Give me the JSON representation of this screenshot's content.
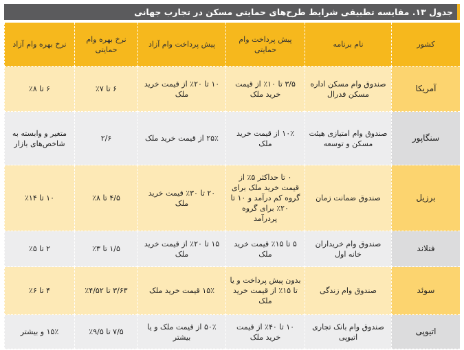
{
  "title": "جدول ۱۳. مقایسه تطبیقی شرایط طرح‌های حمایتی مسکن در تجارب جهانی",
  "headers": {
    "country": "کشور",
    "program": "نام برنامه",
    "down_payment_supported": "پیش پرداخت وام حمایتی",
    "down_payment_free": "پیش پرداخت وام آزاد",
    "rate_supported": "نرخ بهره وام حمایتی",
    "rate_free": "نرخ بهره وام آزاد"
  },
  "rows": [
    {
      "country": "آمریکا",
      "program": "صندوق وام مسکن اداره مسکن فدرال",
      "down_payment_supported": "۳/۵ تا ۱۰٪ از قیمت خرید ملک",
      "down_payment_free": "۱۰ تا ۲۰٪ از قیمت خرید ملک",
      "rate_supported": "۶ تا ۷٪",
      "rate_free": "۶ تا ۸٪"
    },
    {
      "country": "سنگاپور",
      "program": "صندوق وام امتیازی هیئت مسکن و توسعه",
      "down_payment_supported": "۱۰٪ از قیمت خرید ملک",
      "down_payment_free": "۲۵٪ از قیمت خرید ملک",
      "rate_supported": "۲/۶",
      "rate_free": "متغیر و وابسته به شاخص‌های بازار"
    },
    {
      "country": "برزیل",
      "program": "صندوق ضمانت زمان",
      "down_payment_supported": "۰ تا حداکثر ۵٪ از قیمت خرید ملک برای گروه کم درآمد و ۱۰ تا ۲۰٪ برای گروه پردرآمد",
      "down_payment_free": "۲۰ تا ۳۰٪ قیمت خرید ملک",
      "rate_supported": "۴/۵ تا ۸٪",
      "rate_free": "۱۰ تا ۱۴٪"
    },
    {
      "country": "فنلاند",
      "program": "صندوق وام خریداران خانه اول",
      "down_payment_supported": "۵ تا ۱۵٪ قیمت خرید ملک",
      "down_payment_free": "۱۵ تا ۲۰٪ از قیمت خرید ملک",
      "rate_supported": "۱/۵ تا ۳٪",
      "rate_free": "۲ تا ۵٪"
    },
    {
      "country": "سوئد",
      "program": "صندوق وام زندگی",
      "down_payment_supported": "بدون پیش پرداخت و یا تا ۱۵٪ از قیمت خرید ملک",
      "down_payment_free": "۱۵٪ قیمت خرید ملک",
      "rate_supported": "۳/۶۳ تا ۴/۵۲٪",
      "rate_free": "۴ تا ۶٪"
    },
    {
      "country": "اتیوپی",
      "program": "صندوق وام بانک تجاری اتیوپی",
      "down_payment_supported": "۱۰ تا ۴۰٪ از قیمت خرید ملک",
      "down_payment_free": "۵۰٪ از قیمت ملک و یا بیشتر",
      "rate_supported": "۷/۵ تا ۹/۵٪",
      "rate_free": "۱۵٪ و بیشتر"
    }
  ],
  "colors": {
    "title_bar": "#5b5b5d",
    "accent": "#f3b41b",
    "header": "#f6b81d",
    "odd_row": "#fde9b6",
    "even_row": "#ededee"
  }
}
